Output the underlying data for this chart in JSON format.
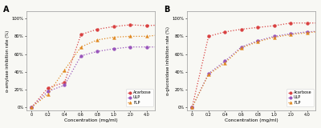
{
  "panel_A": {
    "title": "A",
    "ylabel": "α-amylase inhibition rate (%)",
    "xlabel": "Concentration (mg/ml)",
    "x_indices": [
      0,
      1,
      2,
      3,
      4,
      5,
      6,
      7,
      8
    ],
    "acarbose": [
      0,
      22,
      28,
      82,
      88,
      91,
      93,
      92,
      93
    ],
    "ulp": [
      0,
      18,
      25,
      58,
      63,
      66,
      68,
      68,
      68
    ],
    "flp": [
      0,
      15,
      42,
      68,
      76,
      79,
      80,
      80,
      82
    ],
    "yticks": [
      0,
      20,
      40,
      60,
      80,
      100
    ],
    "yticklabels": [
      "0%",
      "20%",
      "40%",
      "60%",
      "80%",
      "100%"
    ]
  },
  "panel_B": {
    "title": "B",
    "ylabel": "α-glucosidase inhibition rate (%)",
    "xlabel": "Concentration (mg/ml)",
    "x_indices": [
      0,
      1,
      2,
      3,
      4,
      5,
      6,
      7,
      8
    ],
    "acarbose": [
      0,
      80,
      85,
      88,
      90,
      92,
      95,
      95,
      95
    ],
    "ulp": [
      0,
      38,
      52,
      68,
      75,
      80,
      83,
      85,
      86
    ],
    "flp": [
      0,
      37,
      50,
      67,
      74,
      79,
      82,
      84,
      86
    ],
    "yticks": [
      0,
      20,
      40,
      60,
      80,
      100
    ],
    "yticklabels": [
      "0%",
      "20%",
      "40%",
      "60%",
      "80%",
      "100%"
    ]
  },
  "colors": {
    "acarbose": "#d94040",
    "ulp": "#9955bb",
    "flp": "#e08820"
  },
  "xtick_positions": [
    0,
    1,
    2,
    3,
    4,
    5,
    6,
    7,
    8
  ],
  "xtick_labels": [
    "0",
    "0.2",
    "0.4",
    "0.6",
    "0.8",
    "1.0",
    "2.0",
    "4.0",
    ""
  ],
  "xtick_labels_shown": [
    "0",
    "0.2",
    "0.4",
    "0.6",
    "0.8",
    "1.0",
    "2.0",
    "4.0"
  ],
  "xtick_positions_shown": [
    0,
    1,
    2,
    3,
    4,
    5,
    6,
    7
  ],
  "legend_labels": [
    "Acarbose",
    "ULP",
    "FLP"
  ],
  "bg_color": "#f8f8f4"
}
